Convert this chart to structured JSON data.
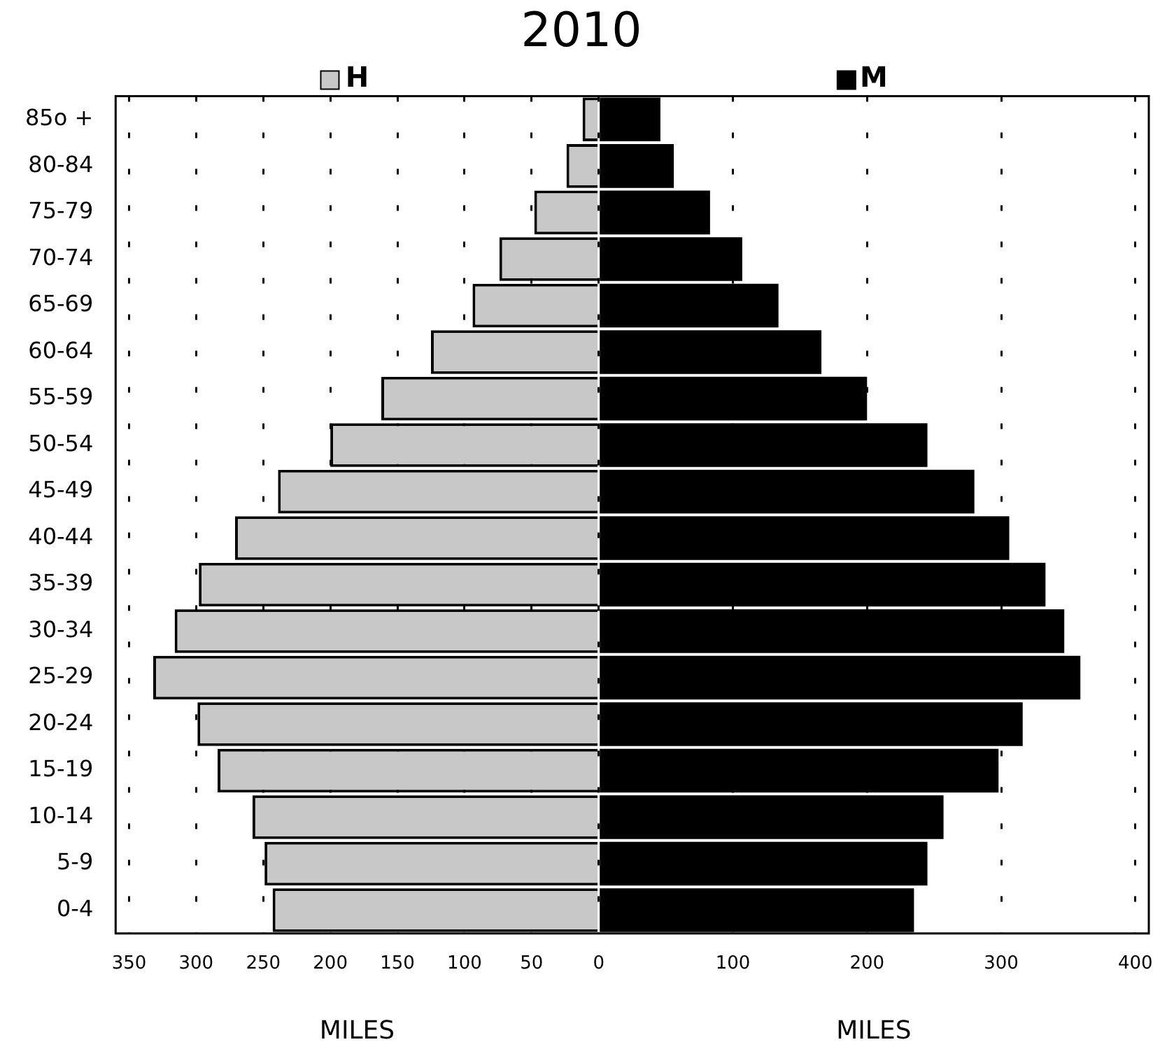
{
  "chart_data": {
    "type": "bar",
    "title": "2010",
    "xlabel": "MILES",
    "orientation": "horizontal",
    "stacked": true,
    "categories": [
      "85o +",
      "80-84",
      "75-79",
      "70-74",
      "65-69",
      "60-64",
      "55-59",
      "50-54",
      "45-49",
      "40-44",
      "35-39",
      "30-34",
      "25-29",
      "20-24",
      "15-19",
      "10-14",
      "5-9",
      "0-4"
    ],
    "series": [
      {
        "name": "H",
        "color": "#c8c8c8",
        "values": [
          -12,
          -24,
          -48,
          -74,
          -94,
          -125,
          -162,
          -200,
          -239,
          -271,
          -298,
          -316,
          -332,
          -299,
          -284,
          -258,
          -249,
          -243
        ]
      },
      {
        "name": "M",
        "color": "#000000",
        "values": [
          46,
          56,
          83,
          107,
          134,
          166,
          200,
          245,
          280,
          306,
          333,
          347,
          359,
          316,
          298,
          257,
          245,
          235
        ]
      }
    ],
    "xlim": [
      -360,
      410
    ],
    "xticks": [
      {
        "value": -350,
        "label": "350"
      },
      {
        "value": -300,
        "label": "300"
      },
      {
        "value": -250,
        "label": "250"
      },
      {
        "value": -200,
        "label": "200"
      },
      {
        "value": -150,
        "label": "150"
      },
      {
        "value": -100,
        "label": "100"
      },
      {
        "value": -50,
        "label": "50"
      },
      0,
      100,
      200,
      300,
      400
    ],
    "grid": "x",
    "legend": "top"
  }
}
